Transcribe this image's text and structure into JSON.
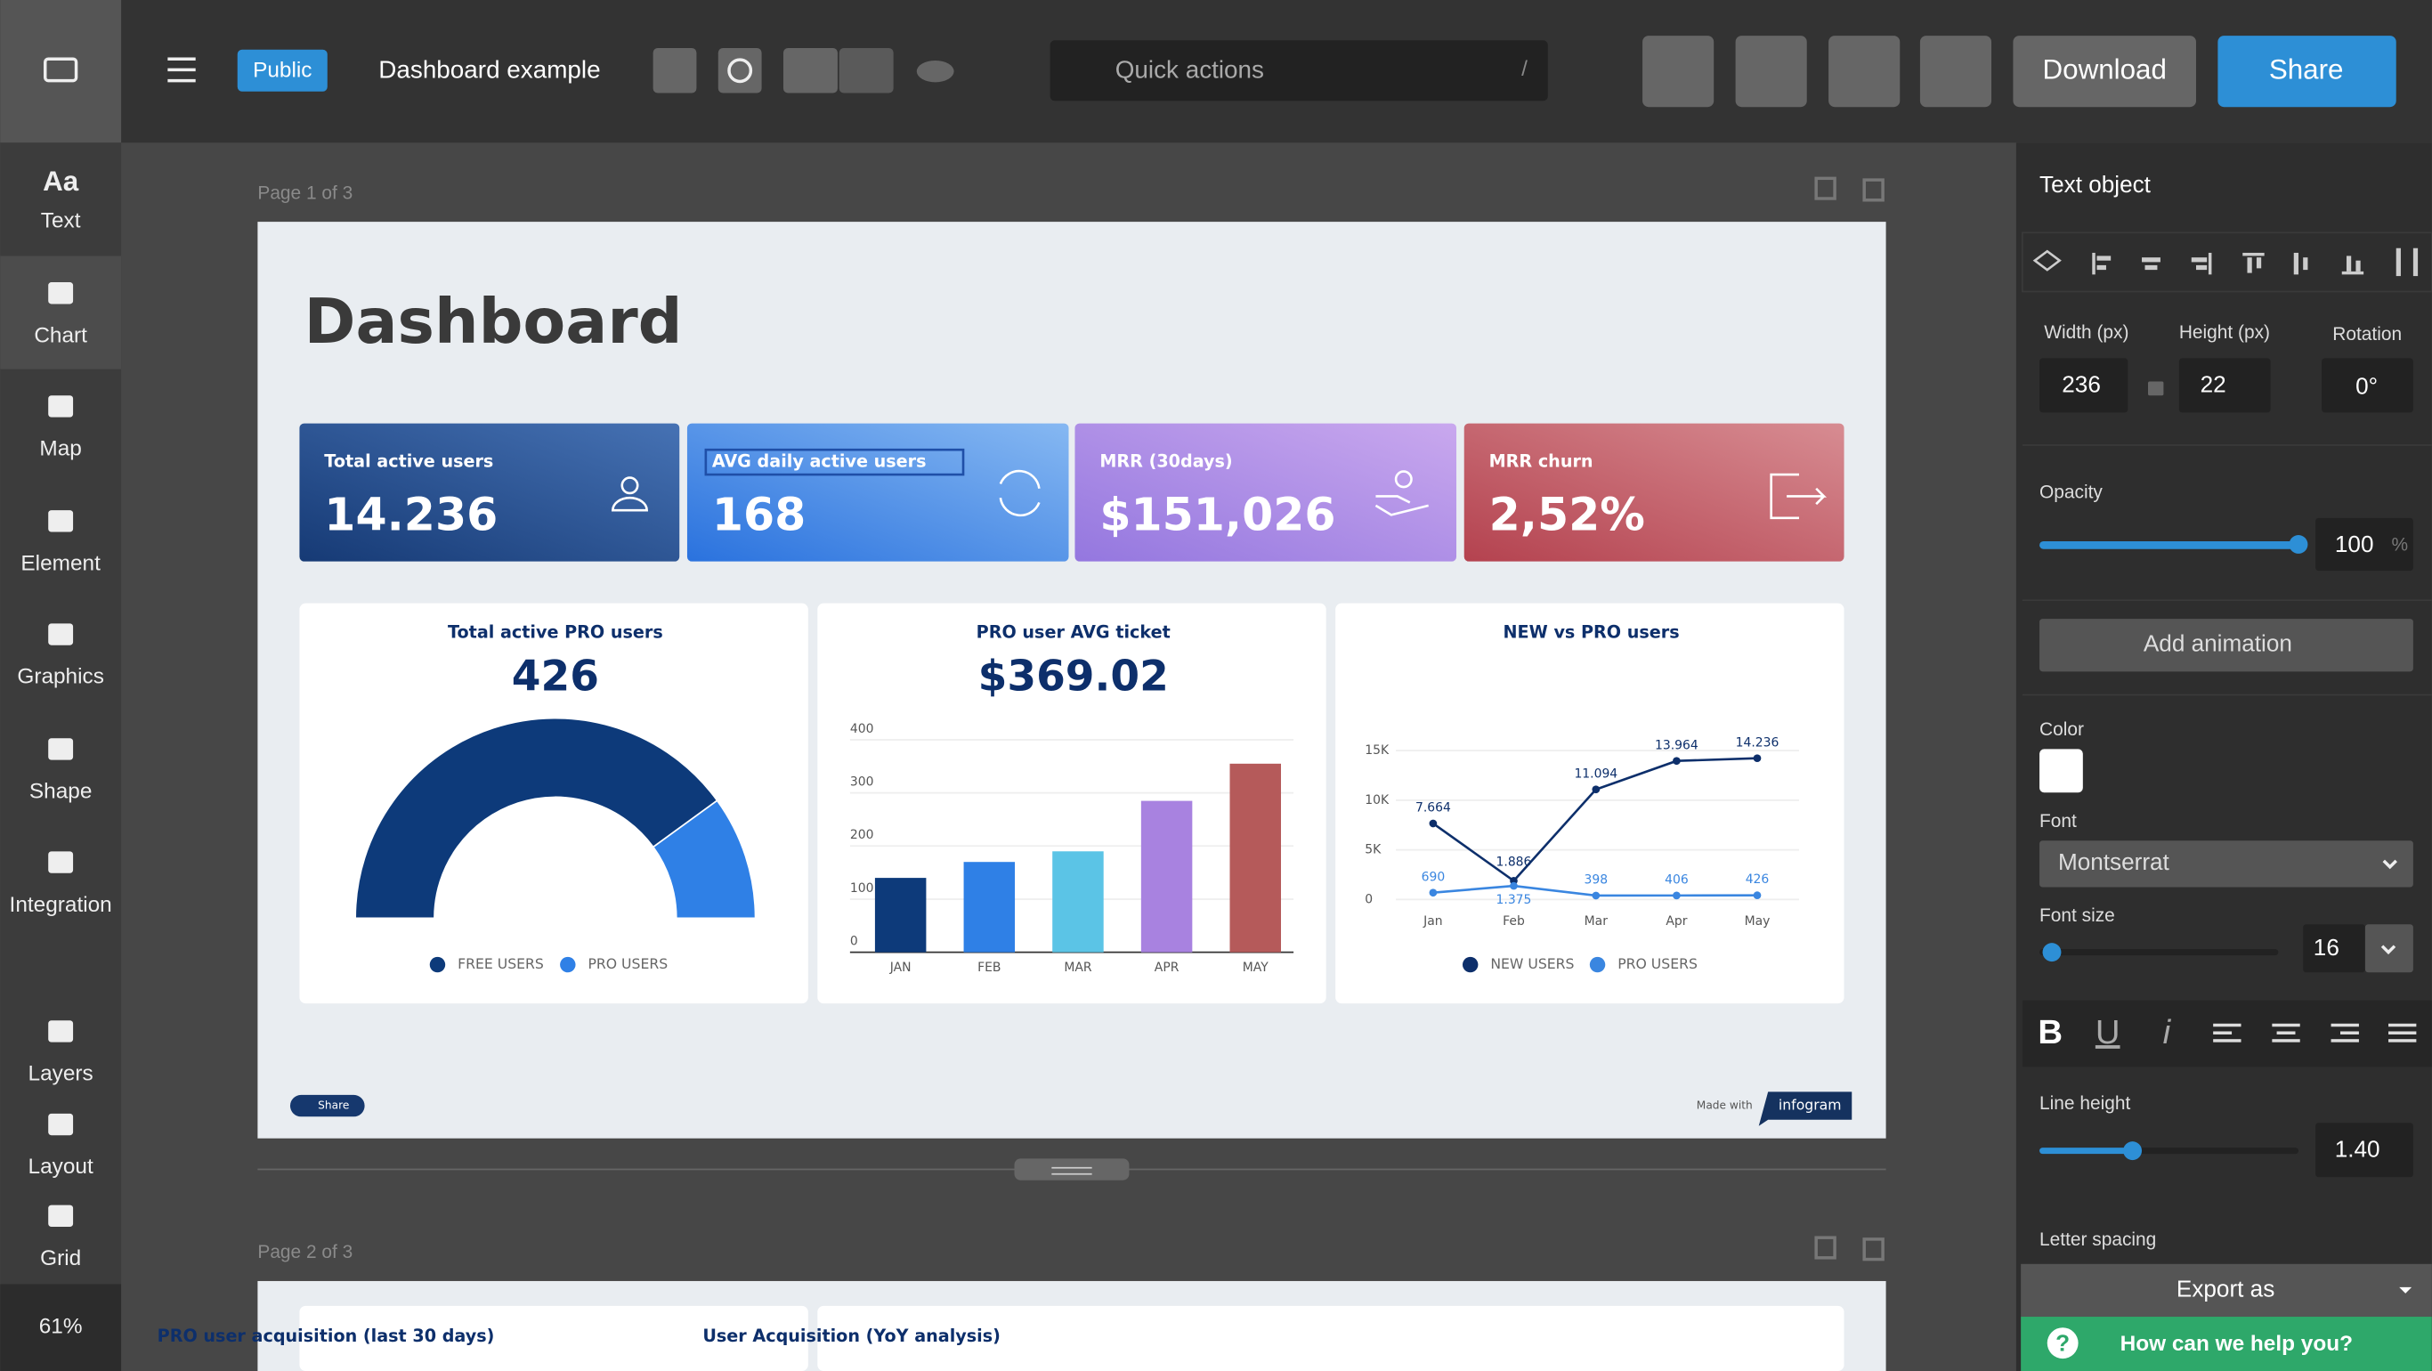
{
  "toolbar": {
    "badge": "Public",
    "doc_title": "Dashboard example",
    "quick_actions": "Quick actions",
    "shortcut": "/",
    "download": "Download",
    "share": "Share"
  },
  "sidebar": {
    "items": [
      "Text",
      "Chart",
      "Map",
      "Element",
      "Graphics",
      "Shape",
      "Integration",
      "Layers",
      "Layout",
      "Grid"
    ],
    "icons": [
      "Aa"
    ],
    "zoom": "61%"
  },
  "pages": [
    "Page 1 of 3",
    "Page 2 of 3"
  ],
  "dashboard": {
    "title": "Dashboard",
    "kpis": [
      {
        "label": "Total active users",
        "value": "14.236"
      },
      {
        "label": "AVG daily active users",
        "value": "168"
      },
      {
        "label": "MRR (30days)",
        "value": "$151,026"
      },
      {
        "label": "MRR churn",
        "value": "2,52%"
      }
    ],
    "gauge": {
      "type": "gauge",
      "title": "Total active PRO users",
      "headline": "426",
      "series": [
        {
          "name": "FREE USERS",
          "color": "#0d3a7a",
          "value": 80
        },
        {
          "name": "PRO USERS",
          "color": "#2f80e6",
          "value": 20
        }
      ]
    },
    "bar_chart": {
      "type": "bar",
      "title": "PRO user AVG ticket",
      "headline": "$369.02",
      "categories": [
        "JAN",
        "FEB",
        "MAR",
        "APR",
        "MAY"
      ],
      "values": [
        140,
        170,
        190,
        285,
        355
      ],
      "colors": [
        "#0d3a7a",
        "#2f80e6",
        "#5bc4e6",
        "#a882e0",
        "#b55a5a"
      ],
      "ylim": [
        0,
        400
      ],
      "yticks": [
        0,
        100,
        200,
        300,
        400
      ],
      "grid": true
    },
    "line_chart": {
      "type": "line",
      "title": "NEW vs PRO users",
      "categories": [
        "Jan",
        "Feb",
        "Mar",
        "Apr",
        "May"
      ],
      "series": [
        {
          "name": "NEW USERS",
          "color": "#0d2f6b",
          "values": [
            7664,
            1886,
            11094,
            13964,
            14236
          ],
          "value_labels": [
            "7.664",
            "1.886",
            "11.094",
            "13.964",
            "14.236"
          ]
        },
        {
          "name": "PRO USERS",
          "color": "#3a86e0",
          "values": [
            690,
            1375,
            398,
            406,
            426
          ],
          "value_labels": [
            "690",
            "1.375",
            "398",
            "406",
            "426"
          ]
        }
      ],
      "ylim": [
        0,
        15000
      ],
      "yticks": [
        0,
        {
          "value": 5000,
          "label": "5K"
        },
        {
          "value": 10000,
          "label": "10K"
        },
        {
          "value": 15000,
          "label": "15K"
        }
      ],
      "grid": true
    },
    "footer": {
      "share": "Share",
      "made_with": "Made with",
      "brand": "infogram"
    }
  },
  "page2_cards": [
    "PRO user acquisition (last 30 days)",
    "User Acquisition (YoY analysis)"
  ],
  "panel": {
    "title": "Text object",
    "width_label": "Width (px)",
    "width": "236",
    "height_label": "Height (px)",
    "height": "22",
    "rotation_label": "Rotation",
    "rotation": "0°",
    "opacity_label": "Opacity",
    "opacity": "100",
    "opacity_unit": "%",
    "animation": "Add animation",
    "color_label": "Color",
    "font_label": "Font",
    "font": "Montserrat",
    "font_size_label": "Font size",
    "font_size": "16",
    "format": [
      "B",
      "U",
      "i"
    ],
    "line_height_label": "Line height",
    "line_height": "1.40",
    "letter_spacing_label": "Letter spacing",
    "export": "Export as",
    "help": "How can we help you?",
    "help_icon": "?"
  }
}
